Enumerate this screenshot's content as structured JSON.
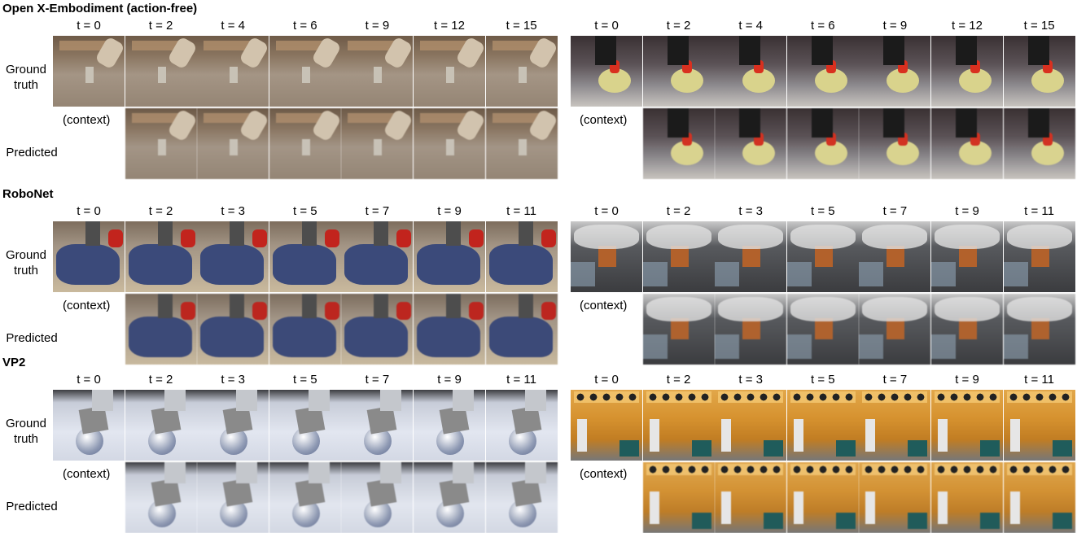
{
  "sections": [
    {
      "title": "Open X-Embodiment (action-free)",
      "left": {
        "times": [
          "t = 0",
          "t = 2",
          "t = 4",
          "t = 6",
          "t = 9",
          "t = 12",
          "t = 15"
        ]
      },
      "right": {
        "times": [
          "t = 0",
          "t = 2",
          "t = 4",
          "t = 6",
          "t = 9",
          "t = 12",
          "t = 15"
        ]
      }
    },
    {
      "title": "RoboNet",
      "left": {
        "times": [
          "t = 0",
          "t = 2",
          "t = 3",
          "t = 5",
          "t = 7",
          "t = 9",
          "t = 11"
        ]
      },
      "right": {
        "times": [
          "t = 0",
          "t = 2",
          "t = 3",
          "t = 5",
          "t = 7",
          "t = 9",
          "t = 11"
        ]
      }
    },
    {
      "title": "VP2",
      "left": {
        "times": [
          "t = 0",
          "t = 2",
          "t = 3",
          "t = 5",
          "t = 7",
          "t = 9",
          "t = 11"
        ]
      },
      "right": {
        "times": [
          "t = 0",
          "t = 2",
          "t = 3",
          "t = 5",
          "t = 7",
          "t = 9",
          "t = 11"
        ]
      }
    }
  ],
  "labels": {
    "ground_truth_line1": "Ground",
    "ground_truth_line2": "truth",
    "predicted": "Predicted",
    "context": "(context)"
  },
  "scenes": [
    "oxe-kitchen-arm",
    "oxe-stove-pan",
    "robonet-cloth",
    "robonet-gripper",
    "vp2-sphere-block",
    "vp2-desk-robot"
  ]
}
